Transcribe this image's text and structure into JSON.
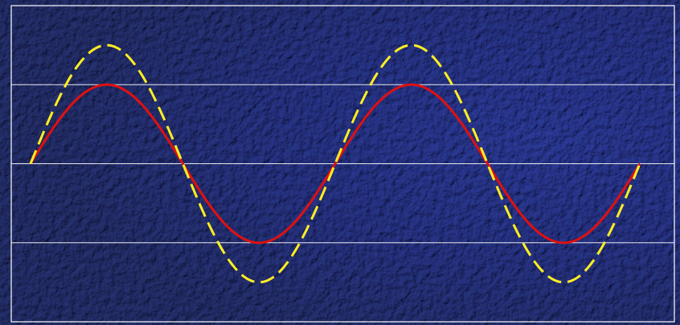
{
  "chart_data": {
    "type": "line",
    "x_range": [
      0,
      4
    ],
    "ylim": [
      -2,
      2
    ],
    "grid": {
      "horizontal": true,
      "vertical": false,
      "y_lines": [
        -1,
        0,
        1
      ]
    },
    "legend": "none",
    "series": [
      {
        "color": "#e01010",
        "style": "solid",
        "amplitude": 1.0,
        "cycles": 2,
        "x": [
          0,
          0.25,
          0.5,
          0.75,
          1,
          1.25,
          1.5,
          1.75,
          2,
          2.25,
          2.5,
          2.75,
          3,
          3.25,
          3.5,
          3.75,
          4
        ],
        "values": [
          0,
          0.71,
          1,
          0.71,
          0,
          -0.71,
          -1,
          -0.71,
          0,
          0.71,
          1,
          0.71,
          0,
          -0.71,
          -1,
          -0.71,
          0
        ]
      },
      {
        "color": "#ffee22",
        "style": "dashed",
        "amplitude": 1.5,
        "cycles": 2,
        "x": [
          0,
          0.25,
          0.5,
          0.75,
          1,
          1.25,
          1.5,
          1.75,
          2,
          2.25,
          2.5,
          2.75,
          3,
          3.25,
          3.5,
          3.75,
          4
        ],
        "values": [
          0,
          1.06,
          1.5,
          1.06,
          0,
          -1.06,
          -1.5,
          -1.06,
          0,
          1.06,
          1.5,
          1.06,
          0,
          -1.06,
          -1.5,
          -1.06,
          0
        ]
      }
    ]
  },
  "colors": {
    "background": "#0d1550",
    "frame": "#ffffff",
    "grid": "#ffffff"
  }
}
